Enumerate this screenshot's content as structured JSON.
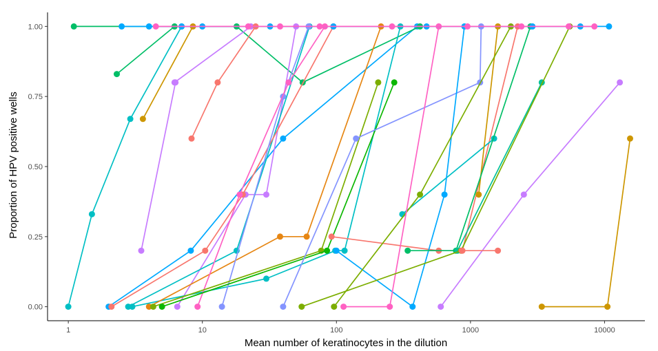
{
  "chart_data": {
    "type": "line",
    "title": "",
    "xlabel": "Mean number of keratinocytes in the dilution",
    "ylabel": "Proportion of HPV positive wells",
    "x_scale": "log10",
    "xlim": [
      0.7,
      20000
    ],
    "ylim": [
      -0.05,
      1.05
    ],
    "x_ticks": [
      1,
      10,
      100,
      1000,
      10000
    ],
    "x_tick_labels": [
      "1",
      "10",
      "100",
      "1000",
      "10000"
    ],
    "y_ticks": [
      0,
      0.25,
      0.5,
      0.75,
      1
    ],
    "y_tick_labels": [
      "0.00",
      "0.25",
      "0.50",
      "0.75",
      "1.00"
    ],
    "grid": false,
    "legend": "none",
    "series": [
      {
        "color": "#00A9FF",
        "points": [
          [
            2.0,
            0
          ],
          [
            8.2,
            0.2
          ],
          [
            40,
            0.6
          ],
          [
            400,
            1
          ]
        ]
      },
      {
        "color": "#00BE67",
        "points": [
          [
            1.1,
            1
          ],
          [
            18,
            1
          ],
          [
            56,
            0.8
          ],
          [
            420,
            1
          ]
        ]
      },
      {
        "color": "#00BFC4",
        "points": [
          [
            1.0,
            0
          ],
          [
            1.5,
            0.33
          ],
          [
            2.9,
            0.67
          ],
          [
            7,
            1
          ]
        ]
      },
      {
        "color": "#00BE67",
        "points": [
          [
            2.3,
            0.83
          ],
          [
            6.2,
            1
          ]
        ]
      },
      {
        "color": "#CD9600",
        "points": [
          [
            3.6,
            0.67
          ],
          [
            8.5,
            1
          ]
        ]
      },
      {
        "color": "#C77CFF",
        "points": [
          [
            3.5,
            0.2
          ],
          [
            6.3,
            0.8
          ]
        ]
      },
      {
        "color": "#C77CFF",
        "points": [
          [
            6.2,
            0.8
          ],
          [
            23,
            1
          ]
        ]
      },
      {
        "color": "#F8766D",
        "points": [
          [
            8.3,
            0.6
          ],
          [
            13,
            0.8
          ],
          [
            25,
            1
          ]
        ]
      },
      {
        "color": "#C77CFF",
        "points": [
          [
            6.5,
            0
          ],
          [
            21,
            0.4
          ],
          [
            30,
            0.4
          ],
          [
            50,
            1
          ]
        ]
      },
      {
        "color": "#00BFC4",
        "points": [
          [
            2.8,
            0
          ],
          [
            18,
            0.2
          ],
          [
            63,
            1
          ]
        ]
      },
      {
        "color": "#F8766D",
        "points": [
          [
            2.1,
            0
          ],
          [
            10.5,
            0.2
          ],
          [
            20,
            0.4
          ],
          [
            95,
            1
          ]
        ]
      },
      {
        "color": "#00BFC4",
        "points": [
          [
            3.0,
            0
          ],
          [
            30,
            0.1
          ],
          [
            98,
            0.2
          ],
          [
            115,
            0.2
          ],
          [
            300,
            1
          ]
        ]
      },
      {
        "color": "#E68613",
        "points": [
          [
            4.0,
            0
          ],
          [
            38,
            0.25
          ],
          [
            60,
            0.25
          ],
          [
            215,
            1
          ]
        ]
      },
      {
        "color": "#8494FF",
        "points": [
          [
            14,
            0
          ],
          [
            40,
            0.75
          ],
          [
            62,
            1
          ]
        ]
      },
      {
        "color": "#FF61C3",
        "points": [
          [
            9.2,
            0
          ],
          [
            19,
            0.4
          ],
          [
            44,
            0.8
          ],
          [
            82,
            1
          ]
        ]
      },
      {
        "color": "#7CAE00",
        "points": [
          [
            4.3,
            0
          ],
          [
            77,
            0.2
          ],
          [
            205,
            0.8
          ]
        ]
      },
      {
        "color": "#0CB702",
        "points": [
          [
            5.0,
            0
          ],
          [
            85,
            0.2
          ],
          [
            270,
            0.8
          ]
        ]
      },
      {
        "color": "#8494FF",
        "points": [
          [
            40,
            0
          ],
          [
            140,
            0.6
          ],
          [
            1180,
            0.8
          ],
          [
            1200,
            1
          ]
        ]
      },
      {
        "color": "#F8766D",
        "points": [
          [
            92,
            0.25
          ],
          [
            580,
            0.2
          ],
          [
            870,
            0.2
          ],
          [
            2250,
            1
          ]
        ]
      },
      {
        "color": "#00BFC4",
        "points": [
          [
            310,
            0.33
          ],
          [
            1500,
            0.6
          ]
        ]
      },
      {
        "color": "#00A9FF",
        "points": [
          [
            100,
            0.2
          ],
          [
            370,
            0
          ],
          [
            640,
            0.4
          ],
          [
            900,
            1
          ]
        ]
      },
      {
        "color": "#CD9600",
        "points": [
          [
            1150,
            0.4
          ],
          [
            1600,
            1
          ]
        ]
      },
      {
        "color": "#7CAE00",
        "points": [
          [
            96,
            0
          ],
          [
            420,
            0.4
          ],
          [
            2000,
            1
          ]
        ]
      },
      {
        "color": "#00BE67",
        "points": [
          [
            340,
            0.2
          ],
          [
            780,
            0.2
          ],
          [
            2800,
            1
          ]
        ]
      },
      {
        "color": "#FF61C3",
        "points": [
          [
            113,
            0
          ],
          [
            250,
            0
          ],
          [
            580,
            1
          ]
        ]
      },
      {
        "color": "#C77CFF",
        "points": [
          [
            600,
            0
          ],
          [
            2500,
            0.4
          ],
          [
            13000,
            0.8
          ]
        ]
      },
      {
        "color": "#00C19A",
        "points": [
          [
            800,
            0.2
          ],
          [
            3400,
            0.8
          ]
        ]
      },
      {
        "color": "#CD9600",
        "points": [
          [
            3400,
            0
          ],
          [
            10500,
            0
          ],
          [
            15500,
            0.6
          ]
        ]
      },
      {
        "color": "#7CAE00",
        "points": [
          [
            55,
            0
          ],
          [
            850,
            0.2
          ],
          [
            5500,
            1
          ]
        ]
      },
      {
        "color": "#F8766D",
        "points": [
          [
            860,
            0.2
          ],
          [
            1600,
            0.2
          ]
        ]
      },
      {
        "color": "#00A9FF",
        "points": [
          [
            2.5,
            1
          ],
          [
            4,
            1
          ],
          [
            7,
            1
          ],
          [
            10,
            1
          ],
          [
            32,
            1
          ],
          [
            95,
            1
          ],
          [
            470,
            1
          ],
          [
            2900,
            1
          ],
          [
            6600,
            1
          ],
          [
            10800,
            1
          ]
        ]
      },
      {
        "color": "#FF61C3",
        "points": [
          [
            4.5,
            1
          ],
          [
            22,
            1
          ],
          [
            38,
            1
          ],
          [
            75,
            1
          ],
          [
            260,
            1
          ],
          [
            950,
            1
          ],
          [
            2400,
            1
          ],
          [
            5400,
            1
          ],
          [
            8400,
            1
          ]
        ]
      }
    ]
  }
}
